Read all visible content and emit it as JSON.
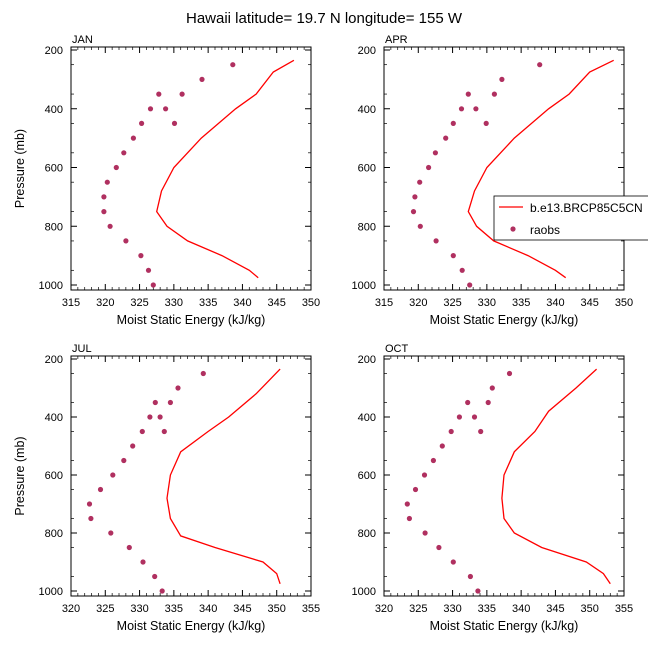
{
  "page_title": "Hawaii  latitude= 19.7 N longitude= 155 W",
  "legend": {
    "model_label": "b.e13.BRCP85C5CN",
    "obs_label": "raobs",
    "model_color": "#ff0000",
    "obs_color": "#b03060"
  },
  "chart_data": [
    {
      "type": "line",
      "panel_label": "JAN",
      "xlabel": "Moist Static Energy (kJ/kg)",
      "ylabel": "Pressure (mb)",
      "xlim": [
        315,
        350
      ],
      "ylim": [
        1000,
        200
      ],
      "xticks": [
        "315",
        "320",
        "325",
        "330",
        "335",
        "340",
        "345",
        "350"
      ],
      "yticks": [
        "200",
        "400",
        "600",
        "800",
        "1000"
      ],
      "model": {
        "x": [
          342.3,
          341.0,
          337.0,
          332.0,
          329.0,
          327.5,
          328.2,
          330.0,
          334.0,
          339.0,
          342.0,
          344.5,
          347.5
        ],
        "y": [
          975,
          950,
          900,
          850,
          800,
          750,
          680,
          600,
          500,
          400,
          350,
          275,
          235
        ]
      },
      "raobs": {
        "x": [
          327.0,
          326.3,
          325.2,
          323.0,
          320.7,
          319.8,
          319.8,
          320.3,
          321.6,
          322.7,
          324.1,
          325.3,
          326.6,
          327.8,
          328.8,
          330.1,
          331.2,
          334.1,
          338.6
        ],
        "y": [
          1000,
          950,
          900,
          850,
          800,
          750,
          700,
          650,
          600,
          550,
          500,
          450,
          400,
          350,
          400,
          450,
          350,
          300,
          250
        ]
      }
    },
    {
      "type": "line",
      "panel_label": "APR",
      "xlabel": "Moist Static Energy (kJ/kg)",
      "ylabel": "",
      "xlim": [
        315,
        350
      ],
      "ylim": [
        1000,
        200
      ],
      "xticks": [
        "315",
        "320",
        "325",
        "330",
        "335",
        "340",
        "345",
        "350"
      ],
      "yticks": [
        "200",
        "400",
        "600",
        "800",
        "1000"
      ],
      "model": {
        "x": [
          341.5,
          340.0,
          336.0,
          331.0,
          328.5,
          327.3,
          328.2,
          330.0,
          334.0,
          339.0,
          342.0,
          345.0,
          348.5
        ],
        "y": [
          975,
          950,
          900,
          850,
          800,
          750,
          680,
          600,
          500,
          400,
          350,
          275,
          235
        ]
      },
      "raobs": {
        "x": [
          327.5,
          326.4,
          325.1,
          322.6,
          320.3,
          319.3,
          319.5,
          320.2,
          321.5,
          322.5,
          324.0,
          325.1,
          326.3,
          327.3,
          328.4,
          329.9,
          331.1,
          332.2,
          337.7
        ],
        "y": [
          1000,
          950,
          900,
          850,
          800,
          750,
          700,
          650,
          600,
          550,
          500,
          450,
          400,
          350,
          400,
          450,
          350,
          300,
          250
        ]
      }
    },
    {
      "type": "line",
      "panel_label": "JUL",
      "xlabel": "Moist Static Energy (kJ/kg)",
      "ylabel": "Pressure (mb)",
      "xlim": [
        320,
        355
      ],
      "ylim": [
        1000,
        200
      ],
      "xticks": [
        "320",
        "325",
        "330",
        "335",
        "340",
        "345",
        "350",
        "355"
      ],
      "yticks": [
        "200",
        "400",
        "600",
        "800",
        "1000"
      ],
      "model": {
        "x": [
          350.5,
          350.0,
          348.0,
          341.0,
          336.0,
          334.5,
          334.0,
          334.5,
          336.0,
          340.0,
          343.0,
          347.0,
          350.5
        ],
        "y": [
          975,
          940,
          900,
          850,
          810,
          750,
          680,
          600,
          520,
          450,
          400,
          320,
          235
        ]
      },
      "raobs": {
        "x": [
          333.3,
          332.2,
          330.5,
          328.5,
          325.8,
          322.9,
          322.7,
          324.3,
          326.1,
          327.7,
          329.0,
          330.4,
          331.5,
          332.3,
          333.0,
          333.6,
          334.5,
          335.6,
          339.3
        ],
        "y": [
          1000,
          950,
          900,
          850,
          800,
          750,
          700,
          650,
          600,
          550,
          500,
          450,
          400,
          350,
          400,
          450,
          350,
          300,
          250
        ]
      }
    },
    {
      "type": "line",
      "panel_label": "OCT",
      "xlabel": "Moist Static Energy (kJ/kg)",
      "ylabel": "",
      "xlim": [
        320,
        355
      ],
      "ylim": [
        1000,
        200
      ],
      "xticks": [
        "320",
        "325",
        "330",
        "335",
        "340",
        "345",
        "350",
        "355"
      ],
      "yticks": [
        "200",
        "400",
        "600",
        "800",
        "1000"
      ],
      "model": {
        "x": [
          353.0,
          352.0,
          349.5,
          343.0,
          339.0,
          337.5,
          337.2,
          337.5,
          339.0,
          342.0,
          344.0,
          348.0,
          351.0
        ],
        "y": [
          975,
          940,
          900,
          850,
          800,
          750,
          680,
          600,
          520,
          450,
          380,
          300,
          235
        ]
      },
      "raobs": {
        "x": [
          333.7,
          332.6,
          330.1,
          328.0,
          326.0,
          323.7,
          323.4,
          324.6,
          325.9,
          327.2,
          328.5,
          329.8,
          331.0,
          332.2,
          333.2,
          334.1,
          335.2,
          335.8,
          338.3
        ],
        "y": [
          1000,
          950,
          900,
          850,
          800,
          750,
          700,
          650,
          600,
          550,
          500,
          450,
          400,
          350,
          400,
          450,
          350,
          300,
          250
        ]
      }
    }
  ]
}
